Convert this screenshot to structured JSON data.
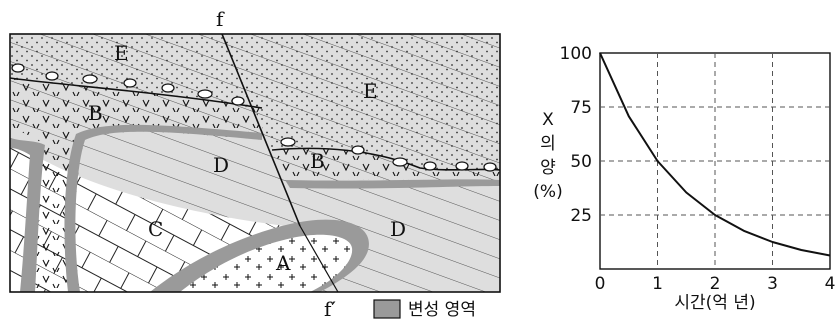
{
  "cross_section": {
    "fault_top_label": "f",
    "fault_bottom_label": "f′",
    "rock_labels": {
      "E_left": "E",
      "E_right": "E",
      "B_left": "B",
      "B_right": "B",
      "D_upper": "D",
      "D_lower": "D",
      "C": "C",
      "A": "A"
    },
    "legend_label": "변성 영역",
    "legend_color": "#9a9a9a"
  },
  "chart_data": {
    "type": "line",
    "ylabel_chars": [
      "X",
      "의",
      "양",
      "(%)"
    ],
    "xlabel": "시간(억 년)",
    "x_ticks": [
      "0",
      "1",
      "2",
      "3",
      "4"
    ],
    "y_ticks": [
      "25",
      "50",
      "75",
      "100"
    ],
    "xlim": [
      0,
      4
    ],
    "ylim": [
      0,
      100
    ],
    "grid": true,
    "series": [
      {
        "x": [
          0,
          0.5,
          1,
          1.5,
          2,
          2.5,
          3,
          3.5,
          4
        ],
        "y": [
          100,
          70.7,
          50,
          35.4,
          25,
          17.7,
          12.5,
          8.8,
          6.25
        ]
      }
    ]
  }
}
